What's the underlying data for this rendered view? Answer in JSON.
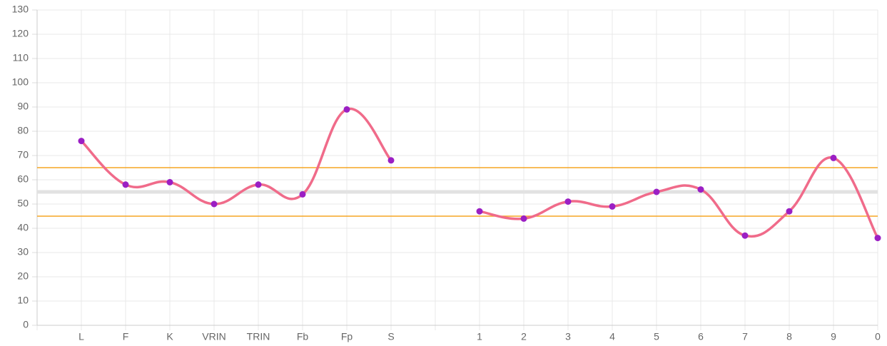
{
  "chart_data": {
    "type": "line",
    "categories": [
      null,
      "L",
      "F",
      "K",
      "VRIN",
      "TRIN",
      "Fb",
      "Fp",
      "S",
      null,
      "1",
      "2",
      "3",
      "4",
      "5",
      "6",
      "7",
      "8",
      "9",
      "0"
    ],
    "series": [
      {
        "color": "#f06b8a",
        "point_color": "#9b1fc4",
        "values": [
          null,
          76,
          58,
          59,
          50,
          58,
          54,
          89,
          68,
          null,
          47,
          44,
          51,
          49,
          55,
          56,
          37,
          47,
          69,
          36
        ]
      }
    ],
    "ylim": [
      0,
      130
    ],
    "yticks": [
      0,
      10,
      20,
      30,
      40,
      50,
      60,
      70,
      80,
      90,
      100,
      110,
      120,
      130
    ],
    "grid": true,
    "reference_lines": [
      {
        "value": 55,
        "color": "#e2e2e2",
        "width": 5
      },
      {
        "value": 65,
        "color": "#f5a623",
        "width": 1.5
      },
      {
        "value": 45,
        "color": "#f5a623",
        "width": 1.5
      }
    ]
  }
}
